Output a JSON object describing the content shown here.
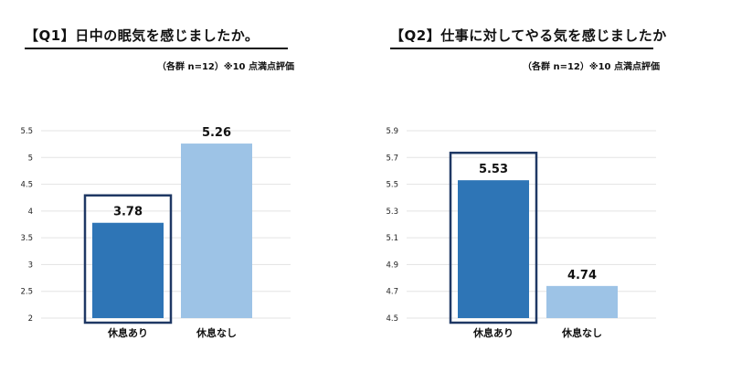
{
  "panels": [
    {
      "title": "【Q1】日中の眠気を感じましたか。",
      "note": "（各群 n=12）※10 点満点評価"
    },
    {
      "title": "【Q2】仕事に対してやる気を感じましたか",
      "note": "（各群 n=12）※10 点満点評価"
    }
  ],
  "chart_data": [
    {
      "type": "bar",
      "title": "【Q1】日中の眠気を感じましたか。",
      "categories": [
        "休息あり",
        "休息なし"
      ],
      "values": [
        3.78,
        5.26
      ],
      "value_labels": [
        "3.78",
        "5.26"
      ],
      "yticks": [
        "2",
        "2.5",
        "3",
        "3.5",
        "4",
        "4.5",
        "5",
        "5.5"
      ],
      "ylim": [
        2,
        5.5
      ],
      "grid": true,
      "colors": [
        "#2e75b6",
        "#9dc3e6"
      ],
      "highlight_index": 0,
      "highlight_color": "#1f3864"
    },
    {
      "type": "bar",
      "title": "【Q2】仕事に対してやる気を感じましたか",
      "categories": [
        "休息あり",
        "休息なし"
      ],
      "values": [
        5.53,
        4.74
      ],
      "value_labels": [
        "5.53",
        "4.74"
      ],
      "yticks": [
        "4.5",
        "4.7",
        "4.9",
        "5.1",
        "5.3",
        "5.5",
        "5.7",
        "5.9"
      ],
      "ylim": [
        4.5,
        5.9
      ],
      "grid": true,
      "colors": [
        "#2e75b6",
        "#9dc3e6"
      ],
      "highlight_index": 0,
      "highlight_color": "#1f3864"
    }
  ]
}
